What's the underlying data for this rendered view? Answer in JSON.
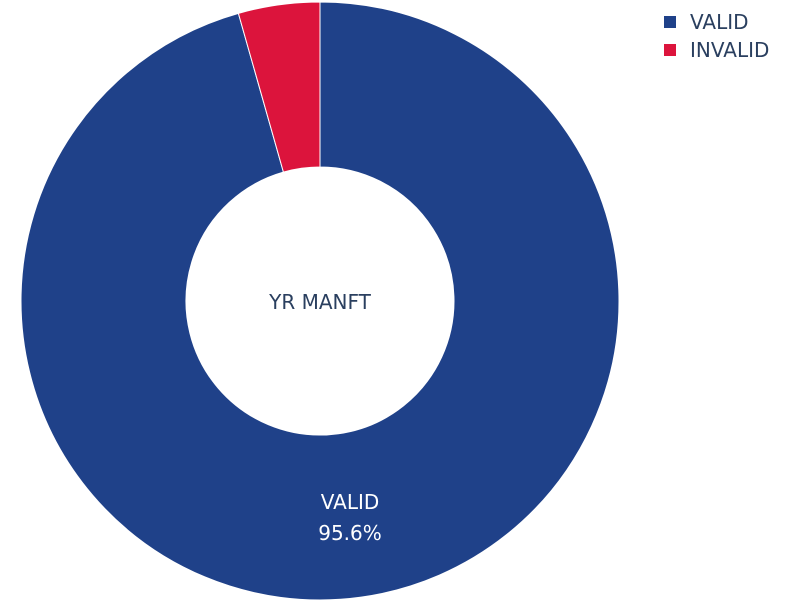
{
  "chart_data": {
    "type": "pie",
    "hole_label": "YR MANFT",
    "slices": [
      {
        "label": "VALID",
        "value": 95.6,
        "color": "#1f4189"
      },
      {
        "label": "INVALID",
        "value": 4.4,
        "color": "#dc143c"
      }
    ],
    "slice_text": [
      {
        "label": "VALID",
        "percent": "95.6%"
      }
    ],
    "legend_position": "top-right",
    "legend": [
      {
        "label": "VALID",
        "color": "#1f4189"
      },
      {
        "label": "INVALID",
        "color": "#dc143c"
      }
    ]
  }
}
